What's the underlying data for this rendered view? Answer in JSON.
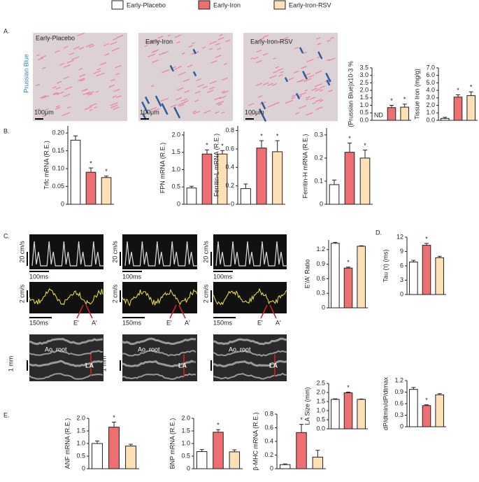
{
  "legend": [
    {
      "name": "Early-Placebo",
      "color": "#ffffff"
    },
    {
      "name": "Early-Iron",
      "color": "#ee6f72"
    },
    {
      "name": "Early-Iron-RSV",
      "color": "#fde0b6"
    }
  ],
  "panels": [
    "A.",
    "B.",
    "C.",
    "D.",
    "E."
  ],
  "histology": {
    "stain": "Prussian Blue",
    "scale": "100μm",
    "images": [
      "Early-Placebo",
      "Early-Iron",
      "Early-Iron-RSV"
    ]
  },
  "echo": {
    "doppler_scale": "20 cm/s",
    "doppler_time": "100ms",
    "tissue_scale": "2 cm/s",
    "tissue_time": "150ms",
    "e_wave": "E'",
    "a_wave": "A'",
    "mmode_scale": "1 mm",
    "aortic_root": "Ao. root",
    "left_atrium": "LA"
  },
  "chart_data": [
    {
      "type": "bar",
      "ylabel": "(Prussian Blue)x10-3 %",
      "values": [
        null,
        0.85,
        0.88
      ],
      "value_labels": [
        "ND",
        null,
        null
      ],
      "errors": [
        null,
        0.15,
        0.2
      ],
      "significance": [
        null,
        "*",
        "*"
      ],
      "ylim": [
        0,
        3.5
      ],
      "yticks": [
        {
          "value": 0,
          "label": "0.0"
        },
        0.5,
        {
          "value": 1,
          "label": "1.0"
        },
        1.5,
        {
          "value": 2,
          "label": "2.0"
        },
        2.5,
        {
          "value": 3,
          "label": "3.0"
        },
        3.5
      ]
    },
    {
      "type": "bar",
      "ylabel": "Tissue Iron (mg/g)",
      "values": [
        0.25,
        3.1,
        3.3
      ],
      "errors": [
        0.15,
        0.3,
        0.5
      ],
      "significance": [
        null,
        "*",
        "*"
      ],
      "ylim": [
        0,
        7
      ],
      "yticks": [
        {
          "value": 0,
          "label": "0.0"
        },
        {
          "value": 1,
          "label": "1.0"
        },
        {
          "value": 2,
          "label": "2.0"
        },
        {
          "value": 3,
          "label": "3.0"
        },
        {
          "value": 4,
          "label": "4.0"
        },
        {
          "value": 5,
          "label": "5.0"
        },
        {
          "value": 6,
          "label": "6.0"
        },
        {
          "value": 7,
          "label": "7.0"
        }
      ]
    },
    {
      "type": "bar",
      "ylabel": "Trfc mRNA (R.E.)",
      "values": [
        0.18,
        0.09,
        0.075
      ],
      "errors": [
        0.012,
        0.012,
        0.004
      ],
      "significance": [
        null,
        "*",
        "*"
      ],
      "ylim": [
        0,
        0.22
      ],
      "yticks": [
        0,
        0.05,
        {
          "value": 0.1,
          "label": "0.10"
        },
        0.15,
        {
          "value": 0.2,
          "label": "0.20"
        }
      ]
    },
    {
      "type": "bar",
      "ylabel": "FPN mRNA (R.E.)",
      "values": [
        0.47,
        1.45,
        1.45
      ],
      "errors": [
        0.05,
        0.12,
        0.1
      ],
      "significance": [
        null,
        "*",
        "*"
      ],
      "ylim": [
        0,
        2.1
      ],
      "yticks": [
        0,
        0.5,
        {
          "value": 1,
          "label": "1.0"
        },
        1.5,
        {
          "value": 2,
          "label": "2.0"
        }
      ]
    },
    {
      "type": "bar",
      "ylabel": "Ferritin-L mRNA (R.E.)",
      "values": [
        0.17,
        0.61,
        0.57
      ],
      "errors": [
        0.05,
        0.08,
        0.12
      ],
      "significance": [
        null,
        "*",
        "*"
      ],
      "ylim": [
        0,
        0.85
      ],
      "yticks": [
        0,
        0.2,
        0.4,
        0.6,
        0.8
      ]
    },
    {
      "type": "bar",
      "ylabel": "Ferritin-H mRNA (R.E.)",
      "values": [
        0.085,
        0.225,
        0.2
      ],
      "errors": [
        0.02,
        0.04,
        0.035
      ],
      "significance": [
        null,
        "*",
        "*"
      ],
      "ylim": [
        0,
        0.33
      ],
      "yticks": [
        0,
        0.1,
        0.2,
        0.3
      ]
    },
    {
      "type": "bar",
      "ylabel": "E'/A' Ratio",
      "values": [
        1.33,
        0.82,
        1.27
      ],
      "errors": [
        0.02,
        0.02,
        0.01
      ],
      "significance": [
        null,
        "*",
        null
      ],
      "ylim": [
        0,
        1.4
      ],
      "yticks": [
        0,
        0.3,
        0.6,
        0.9,
        1.2
      ]
    },
    {
      "type": "bar",
      "ylabel": "LA Size  (mm)",
      "values": [
        1.62,
        1.98,
        1.62
      ],
      "errors": [
        0.03,
        0.04,
        0.02
      ],
      "significance": [
        null,
        "*",
        null
      ],
      "ylim": [
        0,
        2.5
      ],
      "yticks": [
        {
          "value": 0,
          "label": "0.0"
        },
        0.5,
        {
          "value": 1,
          "label": "1.0"
        },
        1.5,
        {
          "value": 2,
          "label": "2.0"
        },
        2.5
      ]
    },
    {
      "type": "bar",
      "ylabel": "Tau (τ) (ms)",
      "values": [
        6.8,
        10.3,
        7.7
      ],
      "errors": [
        0.35,
        0.4,
        0.3
      ],
      "significance": [
        null,
        "*",
        null
      ],
      "ylim": [
        0,
        12
      ],
      "yticks": [
        0,
        3,
        6,
        9,
        12
      ]
    },
    {
      "type": "bar",
      "ylabel": "dP/dtmin/dP/dtmax",
      "values": [
        0.97,
        0.55,
        0.83
      ],
      "errors": [
        0.05,
        0.02,
        0.03
      ],
      "significance": [
        null,
        "*",
        null
      ],
      "ylim": [
        0,
        1.2
      ],
      "yticks": [
        0,
        0.3,
        0.6,
        0.9,
        1.2
      ]
    },
    {
      "type": "bar",
      "ylabel": "ANF mRNA (R.E.)",
      "values": [
        1.0,
        1.65,
        0.9
      ],
      "errors": [
        0.1,
        0.2,
        0.07
      ],
      "significance": [
        null,
        "*",
        null
      ],
      "ylim": [
        0,
        2
      ],
      "yticks": [
        0,
        0.5,
        {
          "value": 1,
          "label": "1.0"
        },
        1.5,
        {
          "value": 2,
          "label": "2.0"
        }
      ]
    },
    {
      "type": "bar",
      "ylabel": "BNP mRNA (R.E.)",
      "values": [
        0.68,
        1.45,
        0.67
      ],
      "errors": [
        0.08,
        0.1,
        0.08
      ],
      "significance": [
        null,
        "*",
        null
      ],
      "ylim": [
        0,
        2
      ],
      "yticks": [
        0,
        0.5,
        {
          "value": 1,
          "label": "1.0"
        },
        1.5,
        {
          "value": 2,
          "label": "2.0"
        }
      ]
    },
    {
      "type": "bar",
      "ylabel": "β-MHC mRNA (R.E.)",
      "values": [
        0.06,
        0.53,
        0.17
      ],
      "errors": [
        0.01,
        0.12,
        0.1
      ],
      "significance": [
        null,
        "*",
        null
      ],
      "ylim": [
        0,
        0.8
      ],
      "yticks": [
        0,
        0.2,
        0.4,
        0.6,
        0.8
      ]
    }
  ]
}
